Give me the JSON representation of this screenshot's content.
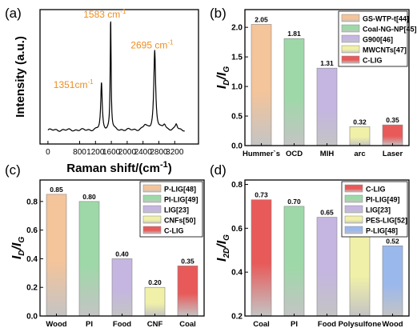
{
  "chart_data": [
    {
      "panel": "(a)",
      "type": "line",
      "xlabel": "Raman shift/(cm",
      "xlabel_sup": "-1",
      "xlabel_close": ")",
      "ylabel": "Intensity (a.u.)",
      "xlim": [
        -200,
        3800
      ],
      "xticks": [
        0,
        800,
        1200,
        1600,
        2000,
        2400,
        2800,
        3200
      ],
      "yticks_visible": false,
      "color": "#000000",
      "peaks": [
        {
          "x": 1351,
          "y": 0.42,
          "w": 22
        },
        {
          "x": 1583,
          "y": 1.0,
          "w": 14
        },
        {
          "x": 2450,
          "y": 0.04,
          "w": 50
        },
        {
          "x": 2695,
          "y": 0.72,
          "w": 28
        },
        {
          "x": 2940,
          "y": 0.05,
          "w": 40
        },
        {
          "x": 3240,
          "y": 0.05,
          "w": 30
        }
      ],
      "annotations": [
        {
          "base": "1583 cm",
          "sup": "-1",
          "x": 1583,
          "y": 1.0,
          "color": "#f08c1e"
        },
        {
          "base": "2695 cm",
          "sup": "-1",
          "x": 2695,
          "y": 0.72,
          "color": "#f08c1e"
        },
        {
          "base": "1351cm",
          "sup": "-1",
          "x": 1351,
          "y": 0.42,
          "color": "#f08c1e"
        }
      ]
    },
    {
      "panel": "(b)",
      "type": "bar",
      "categories": [
        "Hummer`s",
        "OCD",
        "MIH",
        "arc",
        "Laser"
      ],
      "values": [
        2.05,
        1.81,
        1.31,
        0.32,
        0.35
      ],
      "value_labels": [
        "2.05",
        "1.81",
        "1.31",
        "0.32",
        "0.35"
      ],
      "ylabel_base": "I",
      "ylabel_sub1": "D",
      "ylabel_mid": "/I",
      "ylabel_sub2": "G",
      "ylim": [
        0,
        2.3
      ],
      "yticks": [
        0.0,
        0.5,
        1.0,
        1.5,
        2.0
      ],
      "ytick_labels": [
        "0.0",
        "0.5",
        "1.0",
        "1.5",
        "2.0"
      ],
      "colors": [
        "#f4c49a",
        "#9ed8a8",
        "#c4b6e0",
        "#f0f0a8",
        "#e85a5a"
      ],
      "legend": [
        "GS-WTP-t[44]",
        "Coal-NG-NP[45]",
        "G900[46]",
        "MWCNTs[47]",
        "C-LIG"
      ],
      "legend_colors": [
        "#f4c49a",
        "#9ed8a8",
        "#c4b6e0",
        "#f0f0a8",
        "#e85a5a"
      ],
      "legend_position": "top-right"
    },
    {
      "panel": "(c)",
      "type": "bar",
      "categories": [
        "Wood",
        "PI",
        "Food",
        "CNF",
        "Coal"
      ],
      "values": [
        0.85,
        0.8,
        0.4,
        0.2,
        0.35
      ],
      "value_labels": [
        "0.85",
        "0.80",
        "0.40",
        "0.20",
        "0.35"
      ],
      "ylabel_base": "I",
      "ylabel_sub1": "D",
      "ylabel_mid": "/I",
      "ylabel_sub2": "G",
      "ylim": [
        0,
        0.95
      ],
      "yticks": [
        0.0,
        0.2,
        0.4,
        0.6,
        0.8
      ],
      "ytick_labels": [
        "0.0",
        "0.2",
        "0.4",
        "0.6",
        "0.8"
      ],
      "colors": [
        "#f4c49a",
        "#9ed8a8",
        "#c4b6e0",
        "#f0f0a8",
        "#e85a5a"
      ],
      "legend": [
        "P-LIG[48]",
        "PI-LIG[49]",
        "LIG[23]",
        "CNFs[50]",
        "C-LIG"
      ],
      "legend_colors": [
        "#f4c49a",
        "#9ed8a8",
        "#c4b6e0",
        "#f0f0a8",
        "#e85a5a"
      ],
      "legend_position": "top-right"
    },
    {
      "panel": "(d)",
      "type": "bar",
      "categories": [
        "Coal",
        "PI",
        "Food",
        "Polysulfone",
        "Wood"
      ],
      "values": [
        0.73,
        0.7,
        0.65,
        0.6,
        0.52
      ],
      "value_labels": [
        "0.73",
        "0.70",
        "0.65",
        "0.60",
        "0.52"
      ],
      "ylabel_base": "I",
      "ylabel_sub1": "2D",
      "ylabel_mid": "/I",
      "ylabel_sub2": "G",
      "ylim": [
        0.2,
        0.82
      ],
      "yticks": [
        0.2,
        0.4,
        0.6,
        0.8
      ],
      "ytick_labels": [
        "0.2",
        "0.4",
        "0.6",
        "0.8"
      ],
      "colors": [
        "#e85a5a",
        "#9ed8a8",
        "#c4b6e0",
        "#f0f0a8",
        "#9ab8ec"
      ],
      "legend": [
        "C-LIG",
        "PI-LIG[49]",
        "LIG[23]",
        "PES-LIG[52]",
        "P-LIG[48]"
      ],
      "legend_colors": [
        "#e85a5a",
        "#9ed8a8",
        "#c4b6e0",
        "#f0f0a8",
        "#9ab8ec"
      ],
      "legend_position": "top-right"
    }
  ]
}
